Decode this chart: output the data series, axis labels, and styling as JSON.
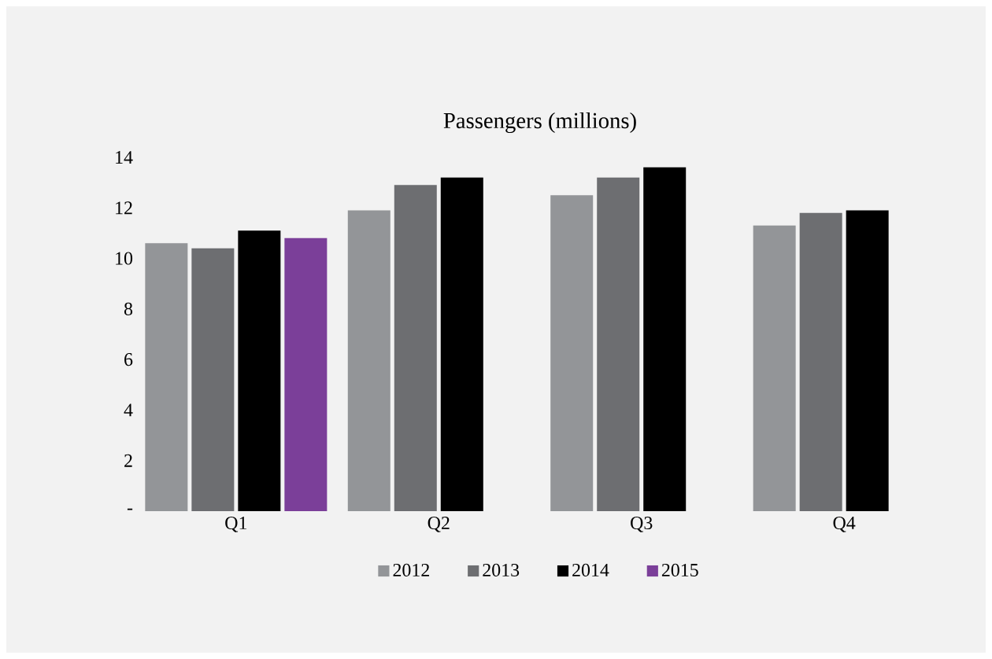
{
  "chart_data": {
    "type": "bar",
    "title": "Passengers (millions)",
    "categories": [
      "Q1",
      "Q2",
      "Q3",
      "Q4"
    ],
    "series": [
      {
        "name": "2012",
        "color": "#939598",
        "values": [
          10.6,
          11.9,
          12.5,
          11.3
        ]
      },
      {
        "name": "2013",
        "color": "#6d6e71",
        "values": [
          10.4,
          12.9,
          13.2,
          11.8
        ]
      },
      {
        "name": "2014",
        "color": "#000000",
        "values": [
          11.1,
          13.2,
          13.6,
          11.9
        ]
      },
      {
        "name": "2015",
        "color": "#7b3f99",
        "values": [
          10.8,
          null,
          null,
          null
        ]
      }
    ],
    "ylim": [
      0,
      14
    ],
    "yticks": [
      {
        "value": 0,
        "label": "-"
      },
      2,
      4,
      6,
      8,
      10,
      12,
      14
    ],
    "legend": "bottom"
  }
}
